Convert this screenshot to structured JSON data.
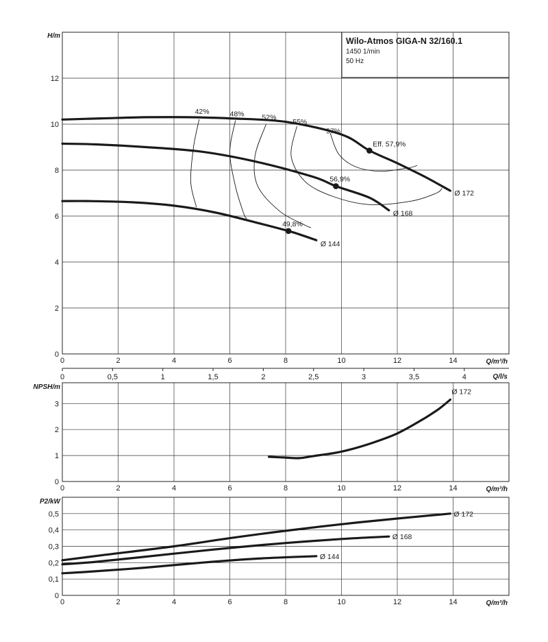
{
  "chart_data": [
    {
      "type": "line",
      "title": "Wilo-Atmos GIGA-N 32/160.1",
      "subtitle": [
        "1450 1/min",
        "50 Hz"
      ],
      "xlabel": "Q/m³/h",
      "ylabel": "H/m",
      "xlim": [
        0,
        16
      ],
      "ylim": [
        0,
        14
      ],
      "x_ticks": [
        0,
        2,
        4,
        6,
        8,
        10,
        12,
        14
      ],
      "y_ticks": [
        0,
        2,
        4,
        6,
        8,
        10,
        12
      ],
      "grid": true,
      "secondary_x": {
        "label": "Q/l/s",
        "ticks": [
          0,
          0.5,
          1,
          1.5,
          2,
          2.5,
          3,
          3.5,
          4
        ],
        "tick_labels": [
          "0",
          "0,5",
          "1",
          "1,5",
          "2",
          "2,5",
          "3",
          "3,5",
          "4"
        ]
      },
      "series": [
        {
          "name": "Ø 172",
          "x": [
            0,
            1.4,
            3,
            4.5,
            6,
            8,
            10,
            11,
            12,
            13,
            13.9
          ],
          "y": [
            10.2,
            10.25,
            10.3,
            10.3,
            10.25,
            10.1,
            9.55,
            8.85,
            8.3,
            7.7,
            7.1
          ]
        },
        {
          "name": "Ø 168",
          "x": [
            0,
            1.2,
            3,
            5,
            7,
            9,
            9.8,
            11,
            11.7
          ],
          "y": [
            9.15,
            9.12,
            9.0,
            8.8,
            8.35,
            7.7,
            7.3,
            6.8,
            6.25
          ]
        },
        {
          "name": "Ø 144",
          "x": [
            0,
            1,
            2.5,
            4,
            5.5,
            7,
            8.1,
            8.5,
            9.1
          ],
          "y": [
            6.65,
            6.65,
            6.6,
            6.45,
            6.15,
            5.7,
            5.35,
            5.2,
            4.95
          ]
        }
      ],
      "efficiency_points": [
        {
          "label": "Eff. 57,9%",
          "x": 11.0,
          "y": 8.85
        },
        {
          "label": "56,9%",
          "x": 9.8,
          "y": 7.3
        },
        {
          "label": "49,8%",
          "x": 8.1,
          "y": 5.35
        }
      ],
      "efficiency_labels": [
        "42%",
        "48%",
        "52%",
        "55%",
        "57%"
      ]
    },
    {
      "type": "line",
      "xlabel": "Q/m³/h",
      "ylabel": "NPSH/m",
      "xlim": [
        0,
        16
      ],
      "ylim": [
        0,
        3.8
      ],
      "x_ticks": [
        0,
        2,
        4,
        6,
        8,
        10,
        12,
        14
      ],
      "y_ticks": [
        0,
        1,
        2,
        3
      ],
      "grid": true,
      "series": [
        {
          "name": "Ø 172",
          "x": [
            7.4,
            8,
            8.5,
            9,
            10,
            11,
            12,
            13,
            13.5,
            13.9
          ],
          "y": [
            0.95,
            0.92,
            0.9,
            0.98,
            1.15,
            1.45,
            1.85,
            2.45,
            2.8,
            3.15
          ]
        }
      ]
    },
    {
      "type": "line",
      "xlabel": "Q/m³/h",
      "ylabel": "P2/kW",
      "xlim": [
        0,
        16
      ],
      "ylim": [
        0,
        0.6
      ],
      "x_ticks": [
        0,
        2,
        4,
        6,
        8,
        10,
        12,
        14
      ],
      "y_ticks": [
        0,
        0.1,
        0.2,
        0.3,
        0.4,
        0.5
      ],
      "y_tick_labels": [
        "0",
        "0,1",
        "0,2",
        "0,3",
        "0,4",
        "0,5"
      ],
      "grid": true,
      "series": [
        {
          "name": "Ø 172",
          "x": [
            0,
            1.4,
            4,
            6,
            8,
            10,
            12,
            13.9
          ],
          "y": [
            0.215,
            0.245,
            0.3,
            0.35,
            0.395,
            0.435,
            0.47,
            0.5
          ]
        },
        {
          "name": "Ø 168",
          "x": [
            0,
            1.2,
            4,
            6,
            8,
            10,
            11.7
          ],
          "y": [
            0.19,
            0.205,
            0.255,
            0.29,
            0.32,
            0.345,
            0.36
          ]
        },
        {
          "name": "Ø 144",
          "x": [
            0,
            1,
            3,
            5,
            7,
            9.1
          ],
          "y": [
            0.135,
            0.145,
            0.17,
            0.2,
            0.225,
            0.24
          ]
        }
      ]
    }
  ]
}
